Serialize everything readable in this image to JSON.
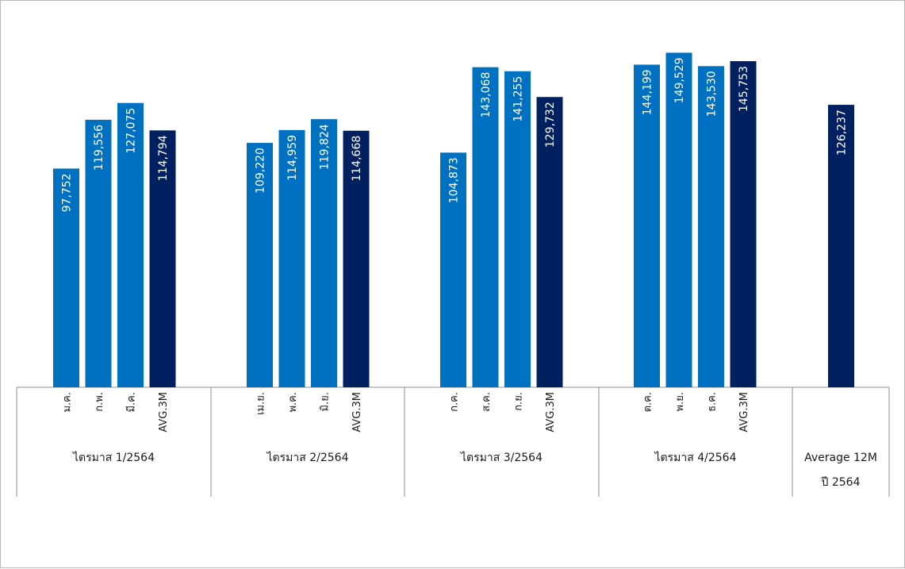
{
  "chart_data": {
    "type": "bar",
    "ylim": [
      0,
      155000
    ],
    "grid": false,
    "colors": {
      "month": "#0070C0",
      "average": "#002060",
      "axis": "#8c8c8c"
    },
    "groups": [
      {
        "label": "ไตรมาส 1/2564",
        "categories": [
          "ม.ค.",
          "ก.พ.",
          "มี.ค.",
          "AVG.3M"
        ],
        "values": [
          97752,
          119556,
          127075,
          114794
        ],
        "value_labels": [
          "97,752",
          "119,556",
          "127,075",
          "114,794"
        ],
        "kinds": [
          "month",
          "month",
          "month",
          "average"
        ]
      },
      {
        "label": "ไตรมาส 2/2564",
        "categories": [
          "เม.ย.",
          "พ.ค.",
          "มิ.ย.",
          "AVG.3M"
        ],
        "values": [
          109220,
          114959,
          119824,
          114668
        ],
        "value_labels": [
          "109,220",
          "114,959",
          "119,824",
          "114,668"
        ],
        "kinds": [
          "month",
          "month",
          "month",
          "average"
        ]
      },
      {
        "label": "ไตรมาส 3/2564",
        "categories": [
          "ก.ค.",
          "ส.ค.",
          "ก.ย.",
          "AVG.3M"
        ],
        "values": [
          104873,
          143068,
          141255,
          129732
        ],
        "value_labels": [
          "104,873",
          "143,068",
          "141,255",
          "129,732"
        ],
        "kinds": [
          "month",
          "month",
          "month",
          "average"
        ]
      },
      {
        "label": "ไตรมาส 4/2564",
        "categories": [
          "ต.ค.",
          "พ.ย.",
          "ธ.ค.",
          "AVG.3M"
        ],
        "values": [
          144199,
          149529,
          143530,
          145753
        ],
        "value_labels": [
          "144,199",
          "149,529",
          "143,530",
          "145,753"
        ],
        "kinds": [
          "month",
          "month",
          "month",
          "average"
        ]
      },
      {
        "label": "Average 12M",
        "label_line2": "ปี 2564",
        "categories": [
          ""
        ],
        "values": [
          126237
        ],
        "value_labels": [
          "126,237"
        ],
        "kinds": [
          "average"
        ]
      }
    ]
  }
}
